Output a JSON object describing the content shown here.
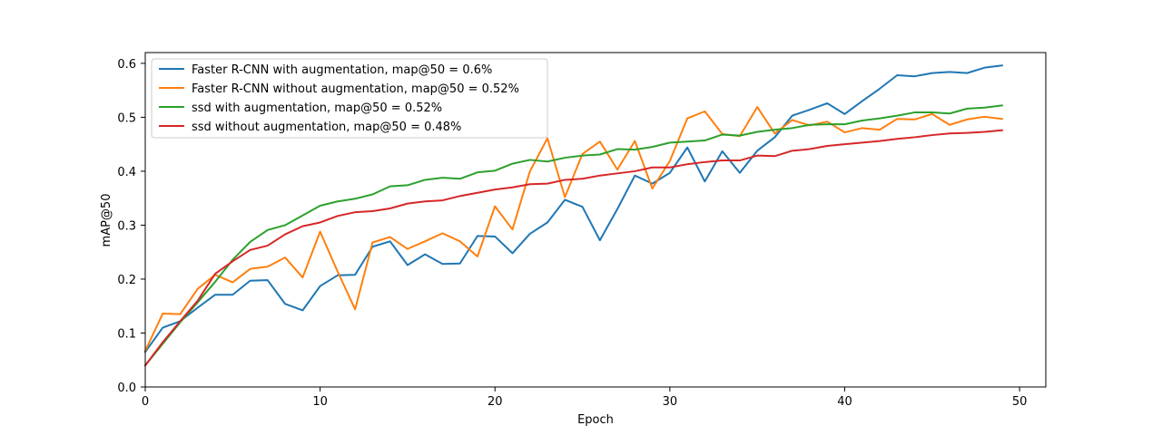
{
  "chart_data": {
    "type": "line",
    "title": "",
    "xlabel": "Epoch",
    "ylabel": "mAP@50",
    "xlim": [
      0,
      51.5
    ],
    "ylim": [
      0,
      0.62
    ],
    "xticks": [
      0,
      10,
      20,
      30,
      40,
      50
    ],
    "xtick_labels": [
      "0",
      "10",
      "20",
      "30",
      "40",
      "50"
    ],
    "yticks": [
      0.0,
      0.1,
      0.2,
      0.3,
      0.4,
      0.5,
      0.6
    ],
    "ytick_labels": [
      "0.0",
      "0.1",
      "0.2",
      "0.3",
      "0.4",
      "0.5",
      "0.6"
    ],
    "grid": false,
    "legend_position": "top-left",
    "x": [
      0,
      1,
      2,
      3,
      4,
      5,
      6,
      7,
      8,
      9,
      10,
      11,
      12,
      13,
      14,
      15,
      16,
      17,
      18,
      19,
      20,
      21,
      22,
      23,
      24,
      25,
      26,
      27,
      28,
      29,
      30,
      31,
      32,
      33,
      34,
      35,
      36,
      37,
      38,
      39,
      40,
      41,
      42,
      43,
      44,
      45,
      46,
      47,
      48,
      49
    ],
    "series": [
      {
        "name": "Faster R-CNN with augmentation, map@50 = 0.6%",
        "color": "#1f77b4",
        "values": [
          0.065,
          0.11,
          0.122,
          0.147,
          0.171,
          0.171,
          0.197,
          0.198,
          0.154,
          0.142,
          0.187,
          0.207,
          0.208,
          0.26,
          0.27,
          0.226,
          0.246,
          0.228,
          0.229,
          0.28,
          0.279,
          0.248,
          0.284,
          0.305,
          0.347,
          0.334,
          0.272,
          0.33,
          0.392,
          0.377,
          0.397,
          0.444,
          0.381,
          0.437,
          0.397,
          0.438,
          0.463,
          0.503,
          0.514,
          0.526,
          0.506,
          0.53,
          0.553,
          0.578,
          0.576,
          0.582,
          0.584,
          0.582,
          0.592,
          0.596
        ]
      },
      {
        "name": "Faster R-CNN without augmentation, map@50 = 0.52%",
        "color": "#ff7f0e",
        "values": [
          0.067,
          0.136,
          0.135,
          0.182,
          0.208,
          0.194,
          0.219,
          0.223,
          0.24,
          0.203,
          0.288,
          0.214,
          0.144,
          0.268,
          0.278,
          0.256,
          0.27,
          0.285,
          0.27,
          0.242,
          0.335,
          0.292,
          0.4,
          0.461,
          0.352,
          0.432,
          0.455,
          0.403,
          0.456,
          0.368,
          0.419,
          0.498,
          0.511,
          0.469,
          0.465,
          0.519,
          0.47,
          0.495,
          0.485,
          0.492,
          0.472,
          0.48,
          0.477,
          0.497,
          0.496,
          0.506,
          0.486,
          0.496,
          0.501,
          0.497
        ]
      },
      {
        "name": "ssd with augmentation, map@50 = 0.52%",
        "color": "#2ca02c",
        "values": [
          0.04,
          0.08,
          0.12,
          0.157,
          0.195,
          0.236,
          0.269,
          0.291,
          0.3,
          0.318,
          0.336,
          0.344,
          0.349,
          0.357,
          0.372,
          0.374,
          0.384,
          0.388,
          0.386,
          0.398,
          0.401,
          0.414,
          0.421,
          0.418,
          0.425,
          0.429,
          0.431,
          0.441,
          0.44,
          0.445,
          0.453,
          0.455,
          0.457,
          0.468,
          0.466,
          0.473,
          0.477,
          0.48,
          0.486,
          0.487,
          0.487,
          0.494,
          0.498,
          0.503,
          0.509,
          0.509,
          0.507,
          0.516,
          0.518,
          0.522
        ]
      },
      {
        "name": "ssd without augmentation, map@50 = 0.48%",
        "color": "#d62728",
        "values": [
          0.04,
          0.083,
          0.122,
          0.16,
          0.21,
          0.233,
          0.254,
          0.262,
          0.283,
          0.298,
          0.305,
          0.317,
          0.324,
          0.326,
          0.331,
          0.34,
          0.344,
          0.346,
          0.354,
          0.36,
          0.366,
          0.37,
          0.376,
          0.377,
          0.384,
          0.386,
          0.392,
          0.396,
          0.4,
          0.407,
          0.407,
          0.413,
          0.417,
          0.42,
          0.42,
          0.429,
          0.428,
          0.438,
          0.441,
          0.447,
          0.45,
          0.453,
          0.456,
          0.46,
          0.463,
          0.467,
          0.47,
          0.471,
          0.473,
          0.476
        ]
      }
    ]
  }
}
